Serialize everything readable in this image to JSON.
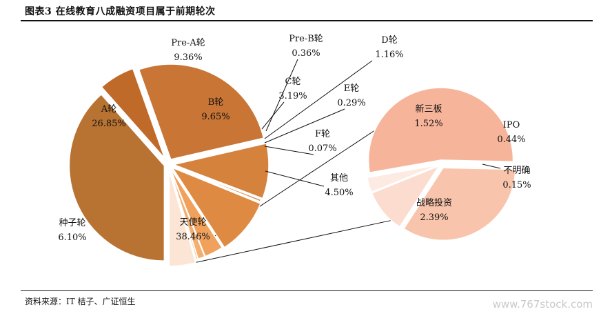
{
  "header": {
    "title": "图表3 在线教育八成融资项目属于前期轮次"
  },
  "source": "资料来源：IT 桔子、广证恒生",
  "watermark": "www.767stock.com",
  "chart_data": {
    "type": "pie",
    "series": [
      {
        "slices": [
          {
            "label": "天使轮",
            "value": 38.46,
            "display": "38.46%",
            "color": "#B87333"
          },
          {
            "label": "种子轮",
            "value": 6.1,
            "display": "6.10%",
            "color": "#C06A2A"
          },
          {
            "label": "A轮",
            "value": 26.85,
            "display": "26.85%",
            "color": "#C87535"
          },
          {
            "label": "Pre-A轮",
            "value": 9.36,
            "display": "9.36%",
            "color": "#D5823C"
          },
          {
            "label": "Pre-B轮",
            "value": 0.36,
            "display": "0.36%",
            "color": "#DB8C48"
          },
          {
            "label": "B轮",
            "value": 9.65,
            "display": "9.65%",
            "color": "#DF8A43"
          },
          {
            "label": "C轮",
            "value": 3.19,
            "display": "3.19%",
            "color": "#F0A15C"
          },
          {
            "label": "D轮",
            "value": 1.16,
            "display": "1.16%",
            "color": "#F3AE72"
          },
          {
            "label": "E轮",
            "value": 0.29,
            "display": "0.29%",
            "color": "#F5B885"
          },
          {
            "label": "F轮",
            "value": 0.07,
            "display": "0.07%",
            "color": "#F7C49A"
          },
          {
            "label": "其他",
            "value": 4.5,
            "display": "4.50%",
            "color": "#FCE5D5"
          }
        ]
      },
      {
        "name": "其他",
        "slices": [
          {
            "label": "战略投资",
            "value": 2.39,
            "display": "2.39%",
            "color": "#F6B59A"
          },
          {
            "label": "新三板",
            "value": 1.52,
            "display": "1.52%",
            "color": "#F8C4AC"
          },
          {
            "label": "IPO",
            "value": 0.44,
            "display": "0.44%",
            "color": "#FBDCCF"
          },
          {
            "label": "不明确",
            "value": 0.15,
            "display": "0.15%",
            "color": "#FDEBE3"
          }
        ]
      }
    ]
  }
}
